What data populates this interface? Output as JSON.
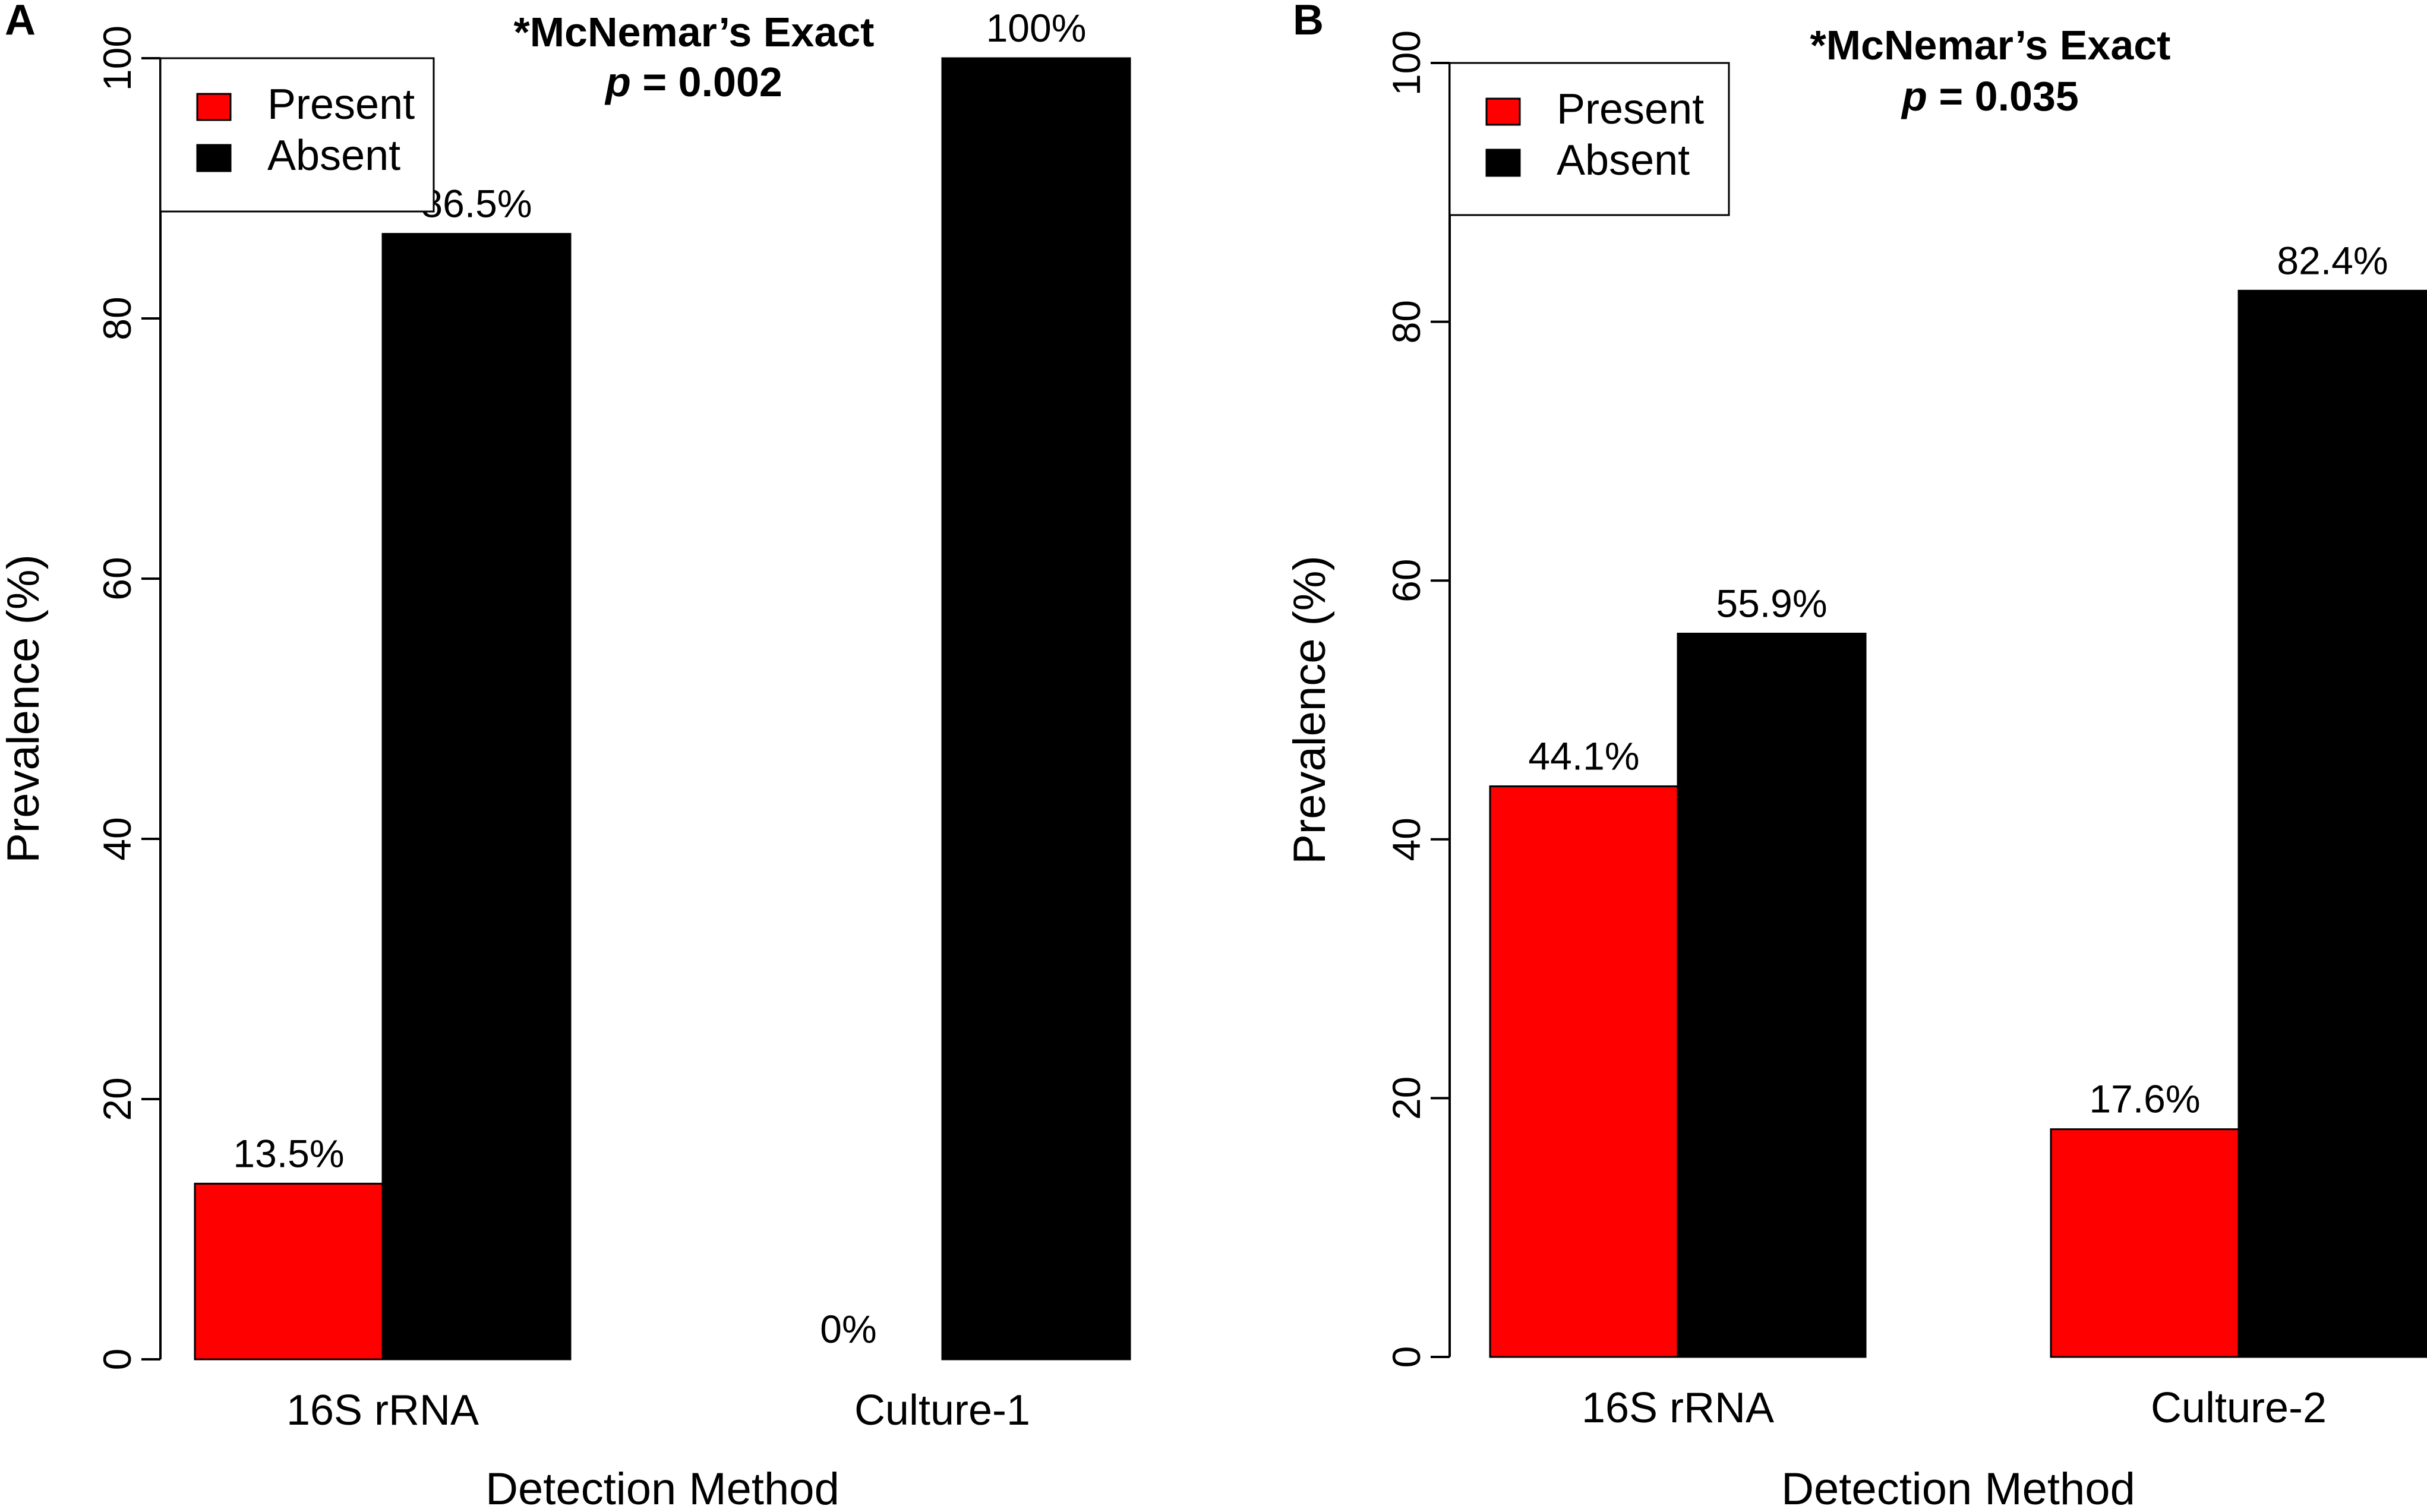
{
  "chart_data": [
    {
      "type": "bar",
      "panel_label": "A",
      "categories": [
        "16S rRNA",
        "Culture-1"
      ],
      "series": [
        {
          "name": "Present",
          "color": "#ff0000",
          "values": [
            13.5,
            0
          ]
        },
        {
          "name": "Absent",
          "color": "#000000",
          "values": [
            86.5,
            100
          ]
        }
      ],
      "data_labels": [
        [
          "13.5%",
          "86.5%"
        ],
        [
          "0%",
          "100%"
        ]
      ],
      "title": "",
      "test_line1": "*McNemar’s Exact",
      "test_line2_italic": "p",
      "test_line2_rest": " = 0.002",
      "xlabel": "Detection Method",
      "ylabel": "Prevalence (%)",
      "ylim": [
        0,
        100
      ],
      "yticks": [
        0,
        20,
        40,
        60,
        80,
        100
      ],
      "grid": false,
      "legend_position": "top-left"
    },
    {
      "type": "bar",
      "panel_label": "B",
      "categories": [
        "16S rRNA",
        "Culture-2"
      ],
      "series": [
        {
          "name": "Present",
          "color": "#ff0000",
          "values": [
            44.1,
            17.6
          ]
        },
        {
          "name": "Absent",
          "color": "#000000",
          "values": [
            55.9,
            82.4
          ]
        }
      ],
      "data_labels": [
        [
          "44.1%",
          "55.9%"
        ],
        [
          "17.6%",
          "82.4%"
        ]
      ],
      "title": "",
      "test_line1": "*McNemar’s Exact",
      "test_line2_italic": "p",
      "test_line2_rest": " = 0.035",
      "xlabel": "Detection Method",
      "ylabel": "Prevalence (%)",
      "ylim": [
        0,
        100
      ],
      "yticks": [
        0,
        20,
        40,
        60,
        80,
        100
      ],
      "grid": false,
      "legend_position": "top-left"
    }
  ]
}
